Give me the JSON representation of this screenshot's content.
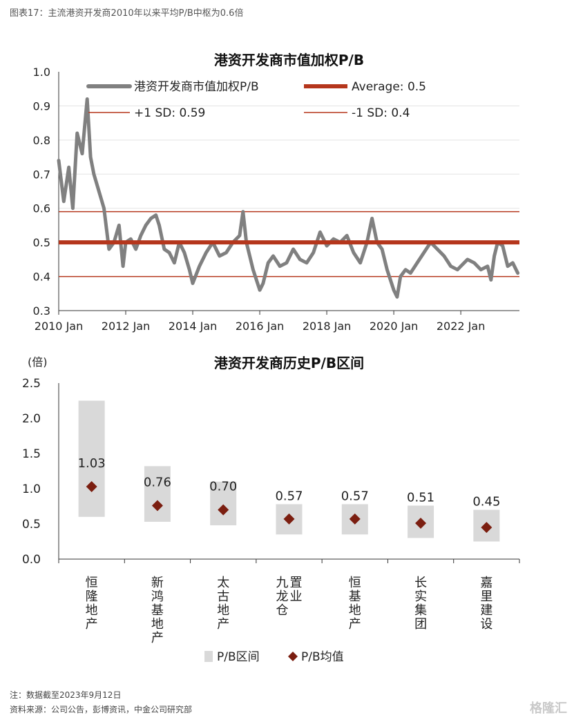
{
  "page": {
    "figure_title": "图表17：主流港资开发商2010年以来平均P/B中枢为0.6倍",
    "note": "注：数据截至2023年9月12日",
    "source": "资料来源：公司公告，彭博资讯，中金公司研究部",
    "watermark": "格隆汇"
  },
  "chart_data": [
    {
      "type": "line",
      "title": "港资开发商市值加权P/B",
      "xlabel": "",
      "ylabel": "",
      "ylim": [
        0.3,
        1.0
      ],
      "yticks": [
        "0.3",
        "0.4",
        "0.5",
        "0.6",
        "0.7",
        "0.8",
        "0.9",
        "1.0"
      ],
      "xticks": [
        "2010 Jan",
        "2012 Jan",
        "2014 Jan",
        "2016 Jan",
        "2018 Jan",
        "2020 Jan",
        "2022 Jan"
      ],
      "grid": "horizontal",
      "legend_placement": "top",
      "series": [
        {
          "name": "港资开发商市值加权P/B",
          "color": "#808080",
          "x": [
            2010.0,
            2010.15,
            2010.3,
            2010.42,
            2010.55,
            2010.7,
            2010.85,
            2010.95,
            2011.05,
            2011.2,
            2011.35,
            2011.5,
            2011.65,
            2011.8,
            2011.92,
            2012.0,
            2012.15,
            2012.3,
            2012.45,
            2012.6,
            2012.75,
            2012.9,
            2013.0,
            2013.15,
            2013.3,
            2013.45,
            2013.6,
            2013.75,
            2013.9,
            2014.0,
            2014.2,
            2014.4,
            2014.6,
            2014.8,
            2015.0,
            2015.2,
            2015.4,
            2015.5,
            2015.6,
            2015.8,
            2016.0,
            2016.1,
            2016.25,
            2016.4,
            2016.6,
            2016.8,
            2017.0,
            2017.2,
            2017.4,
            2017.6,
            2017.8,
            2018.0,
            2018.2,
            2018.4,
            2018.6,
            2018.8,
            2019.0,
            2019.2,
            2019.35,
            2019.5,
            2019.65,
            2019.8,
            2020.0,
            2020.1,
            2020.2,
            2020.35,
            2020.5,
            2020.7,
            2020.9,
            2021.1,
            2021.3,
            2021.5,
            2021.7,
            2021.9,
            2022.0,
            2022.2,
            2022.4,
            2022.6,
            2022.8,
            2022.9,
            2023.0,
            2023.1,
            2023.25,
            2023.4,
            2023.55,
            2023.7
          ],
          "values": [
            0.74,
            0.62,
            0.72,
            0.6,
            0.82,
            0.76,
            0.92,
            0.75,
            0.7,
            0.65,
            0.6,
            0.48,
            0.5,
            0.55,
            0.43,
            0.5,
            0.51,
            0.48,
            0.52,
            0.55,
            0.57,
            0.58,
            0.55,
            0.48,
            0.47,
            0.44,
            0.5,
            0.47,
            0.42,
            0.38,
            0.43,
            0.47,
            0.5,
            0.46,
            0.47,
            0.5,
            0.52,
            0.59,
            0.5,
            0.42,
            0.36,
            0.38,
            0.44,
            0.46,
            0.43,
            0.44,
            0.48,
            0.45,
            0.44,
            0.47,
            0.53,
            0.49,
            0.51,
            0.5,
            0.52,
            0.47,
            0.44,
            0.5,
            0.57,
            0.5,
            0.48,
            0.42,
            0.36,
            0.34,
            0.4,
            0.42,
            0.41,
            0.44,
            0.47,
            0.5,
            0.48,
            0.46,
            0.43,
            0.42,
            0.43,
            0.45,
            0.44,
            0.42,
            0.43,
            0.39,
            0.46,
            0.5,
            0.49,
            0.43,
            0.44,
            0.41
          ]
        },
        {
          "name": "Average: 0.5",
          "color": "#b5361c",
          "value": 0.5
        },
        {
          "name": "+1 SD: 0.59",
          "color": "#b5361c",
          "value": 0.59
        },
        {
          "name": "-1 SD: 0.4",
          "color": "#b5361c",
          "value": 0.4
        }
      ]
    },
    {
      "type": "bar",
      "title": "港资开发商历史P/B区间",
      "ylabel": "(倍)",
      "ylim": [
        0.0,
        2.5
      ],
      "yticks": [
        "0.0",
        "0.5",
        "1.0",
        "1.5",
        "2.0",
        "2.5"
      ],
      "categories": [
        "恒隆地产",
        "新鸿基地产",
        "太古地产",
        "九龙仓\n置业",
        "恒基地产",
        "长实集团",
        "嘉里建设"
      ],
      "series": [
        {
          "name": "P/B区间",
          "color": "#d9d9d9",
          "low": [
            0.6,
            0.53,
            0.48,
            0.35,
            0.35,
            0.3,
            0.25
          ],
          "high": [
            2.25,
            1.32,
            1.1,
            0.78,
            0.78,
            0.76,
            0.7
          ]
        },
        {
          "name": "P/B均值",
          "color": "#7b1e10",
          "values": [
            1.03,
            0.76,
            0.7,
            0.57,
            0.57,
            0.51,
            0.45
          ],
          "labels": [
            "1.03",
            "0.76",
            "0.70",
            "0.57",
            "0.57",
            "0.51",
            "0.45"
          ]
        }
      ],
      "legend_placement": "bottom"
    }
  ]
}
